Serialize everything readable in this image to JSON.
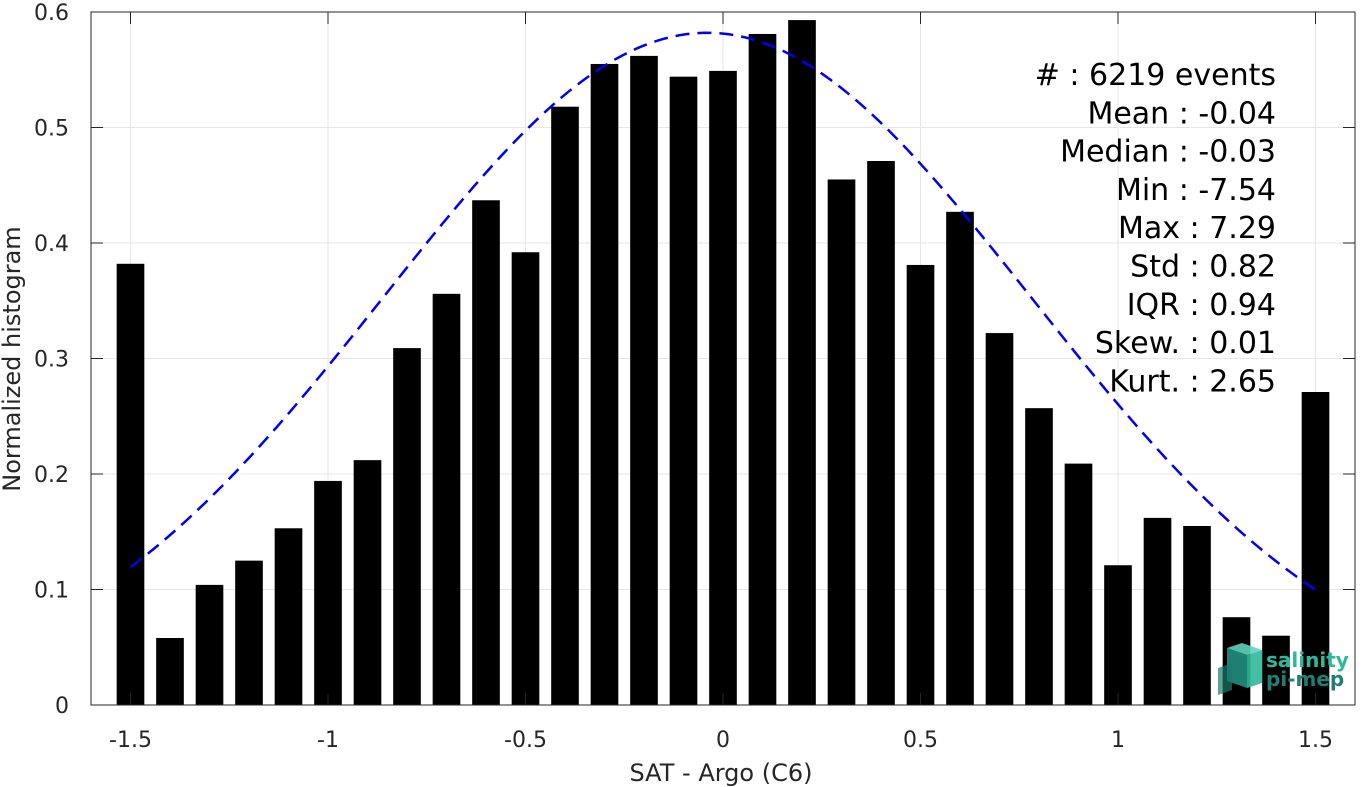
{
  "chart_data": {
    "type": "bar",
    "xlabel": "SAT - Argo (C6)",
    "ylabel": "Normalized histogram",
    "xlim": [
      -1.6,
      1.6
    ],
    "ylim": [
      0,
      0.6
    ],
    "xticks": [
      -1.5,
      -1,
      -0.5,
      0,
      0.5,
      1,
      1.5
    ],
    "xtick_labels": [
      "-1.5",
      "-1",
      "-0.5",
      "0",
      "0.5",
      "1",
      "1.5"
    ],
    "yticks": [
      0,
      0.1,
      0.2,
      0.3,
      0.4,
      0.5,
      0.6
    ],
    "ytick_labels": [
      "0",
      "0.1",
      "0.2",
      "0.3",
      "0.4",
      "0.5",
      "0.6"
    ],
    "grid": true,
    "bar_color": "#000000",
    "bar_width": 0.07,
    "bins": [
      {
        "x": -1.5,
        "value": 0.382
      },
      {
        "x": -1.4,
        "value": 0.058
      },
      {
        "x": -1.3,
        "value": 0.104
      },
      {
        "x": -1.2,
        "value": 0.125
      },
      {
        "x": -1.1,
        "value": 0.153
      },
      {
        "x": -1.0,
        "value": 0.194
      },
      {
        "x": -0.9,
        "value": 0.212
      },
      {
        "x": -0.8,
        "value": 0.309
      },
      {
        "x": -0.7,
        "value": 0.356
      },
      {
        "x": -0.6,
        "value": 0.437
      },
      {
        "x": -0.5,
        "value": 0.392
      },
      {
        "x": -0.4,
        "value": 0.518
      },
      {
        "x": -0.3,
        "value": 0.555
      },
      {
        "x": -0.2,
        "value": 0.562
      },
      {
        "x": -0.1,
        "value": 0.544
      },
      {
        "x": 0.0,
        "value": 0.549
      },
      {
        "x": 0.1,
        "value": 0.581
      },
      {
        "x": 0.2,
        "value": 0.593
      },
      {
        "x": 0.3,
        "value": 0.455
      },
      {
        "x": 0.4,
        "value": 0.471
      },
      {
        "x": 0.5,
        "value": 0.381
      },
      {
        "x": 0.6,
        "value": 0.427
      },
      {
        "x": 0.7,
        "value": 0.322
      },
      {
        "x": 0.8,
        "value": 0.257
      },
      {
        "x": 0.9,
        "value": 0.209
      },
      {
        "x": 1.0,
        "value": 0.121
      },
      {
        "x": 1.1,
        "value": 0.162
      },
      {
        "x": 1.2,
        "value": 0.155
      },
      {
        "x": 1.3,
        "value": 0.076
      },
      {
        "x": 1.4,
        "value": 0.06
      },
      {
        "x": 1.5,
        "value": 0.271
      }
    ],
    "fit_curve": {
      "type": "gaussian",
      "style": "dashed",
      "color": "#0000ee",
      "mean": -0.04,
      "std": 0.82,
      "peak": 0.582,
      "x_range": [
        -1.5,
        1.5
      ]
    },
    "stats": [
      {
        "label": "#  : 6219 events"
      },
      {
        "label": "Mean : -0.04"
      },
      {
        "label": "Median : -0.03"
      },
      {
        "label": "Min : -7.54"
      },
      {
        "label": "Max : 7.29"
      },
      {
        "label": "Std : 0.82"
      },
      {
        "label": "IQR : 0.94"
      },
      {
        "label": "Skew. : 0.01"
      },
      {
        "label": "Kurt. : 2.65"
      }
    ]
  },
  "logo": {
    "line1": "salinity",
    "line2": "pi-mep",
    "color1": "#2fb89a",
    "color2": "#1f7f73"
  }
}
